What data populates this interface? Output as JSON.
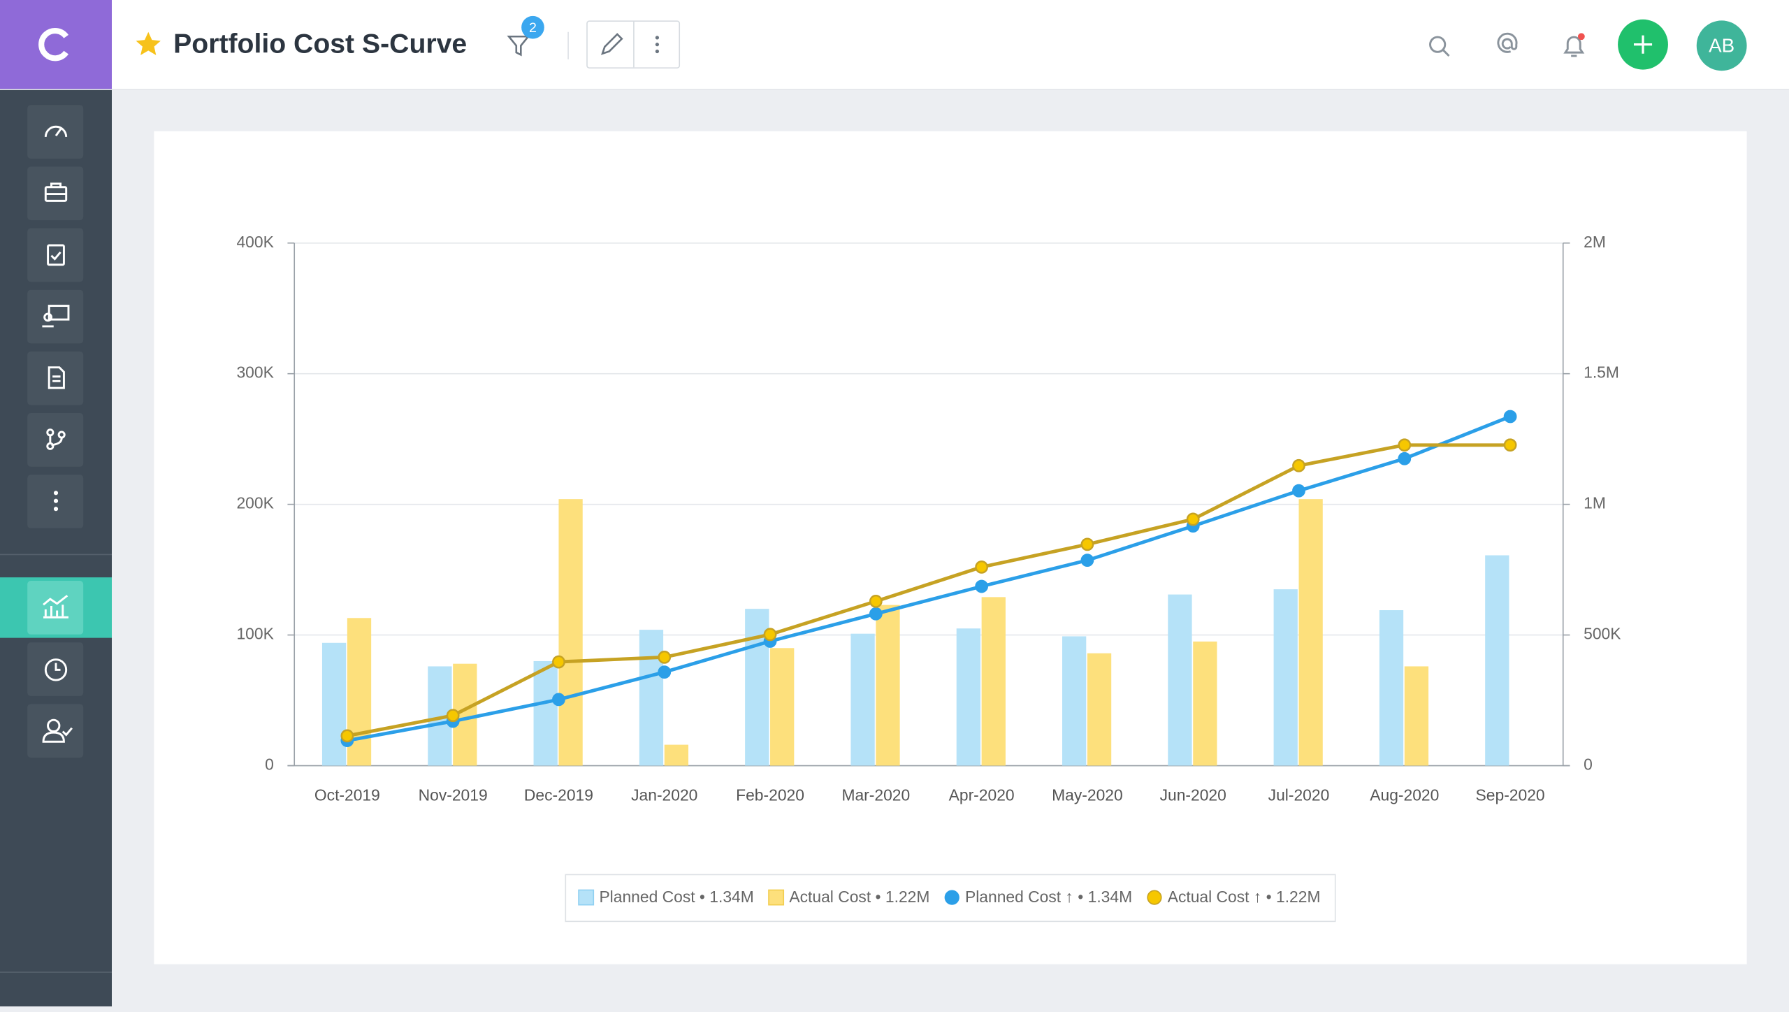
{
  "header": {
    "title": "Portfolio Cost S-Curve",
    "filter_count": "2",
    "avatar": "AB"
  },
  "chart_data": {
    "type": "bar-line",
    "categories": [
      "Oct-2019",
      "Nov-2019",
      "Dec-2019",
      "Jan-2020",
      "Feb-2020",
      "Mar-2020",
      "Apr-2020",
      "May-2020",
      "Jun-2020",
      "Jul-2020",
      "Aug-2020",
      "Sep-2020"
    ],
    "series": [
      {
        "name": "Planned Cost • 1.34M",
        "type": "bar",
        "color": "#b5e2f8",
        "values": [
          94000,
          76000,
          80000,
          104000,
          120000,
          101000,
          105000,
          99000,
          131000,
          135000,
          119000,
          161000
        ]
      },
      {
        "name": "Actual Cost • 1.22M",
        "type": "bar",
        "color": "#fde07c",
        "values": [
          113000,
          78000,
          204000,
          16000,
          90000,
          123000,
          129000,
          86000,
          95000,
          204000,
          76000,
          null
        ]
      },
      {
        "name": "Planned Cost ↑ • 1.34M",
        "type": "line",
        "axis": "y2",
        "color": "#2b9fe8",
        "values": [
          96000,
          170000,
          253000,
          358000,
          476000,
          581000,
          686000,
          786000,
          917000,
          1052000,
          1175000,
          1336000
        ]
      },
      {
        "name": "Actual Cost ↑ • 1.22M",
        "type": "line",
        "axis": "y2",
        "color": "#c6a223",
        "marker_color": "#f6c700",
        "values": [
          114000,
          192000,
          397000,
          415000,
          502000,
          629000,
          760000,
          847000,
          943000,
          1148000,
          1227000,
          1227000
        ]
      }
    ],
    "ylim": [
      0,
      400000
    ],
    "yticks": [
      0,
      {
        "value": 100000,
        "label": "100K"
      },
      {
        "value": 200000,
        "label": "200K"
      },
      {
        "value": 300000,
        "label": "300K"
      },
      {
        "value": 400000,
        "label": "400K"
      }
    ],
    "y2lim": [
      0,
      2000000
    ],
    "y2ticks": [
      0,
      {
        "value": 500000,
        "label": "500K"
      },
      {
        "value": 1000000,
        "label": "1M"
      },
      {
        "value": 1500000,
        "label": "1.5M"
      },
      {
        "value": 2000000,
        "label": "2M"
      }
    ],
    "grid": true
  }
}
